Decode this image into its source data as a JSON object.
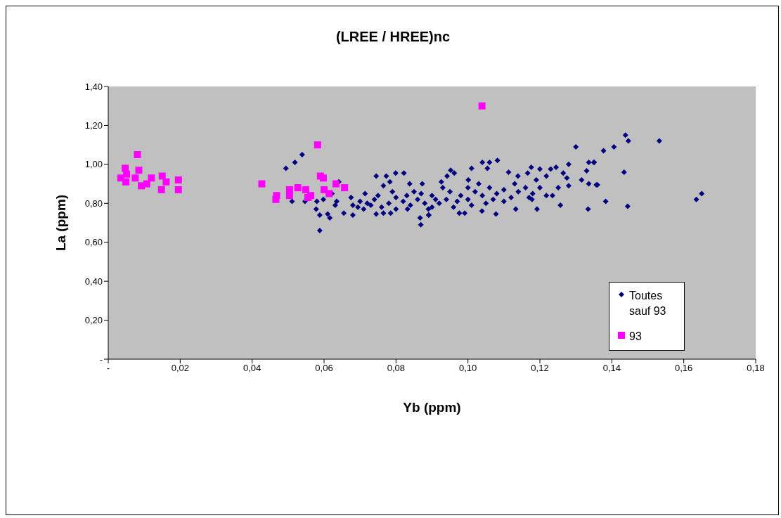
{
  "chart_data": {
    "type": "scatter",
    "title": "(LREE / HREE)nc",
    "xlabel": "Yb (ppm)",
    "ylabel": "La (ppm)",
    "xlim": [
      0,
      0.18
    ],
    "xticks": [
      {
        "value": 0,
        "label": "-"
      },
      {
        "value": 0.02,
        "label": "0,02"
      },
      {
        "value": 0.04,
        "label": "0,04"
      },
      {
        "value": 0.06,
        "label": "0,06"
      },
      {
        "value": 0.08,
        "label": "0,08"
      },
      {
        "value": 0.1,
        "label": "0,10"
      },
      {
        "value": 0.12,
        "label": "0,12"
      },
      {
        "value": 0.14,
        "label": "0,14"
      },
      {
        "value": 0.16,
        "label": "0,16"
      },
      {
        "value": 0.18,
        "label": "0,18"
      }
    ],
    "ylim": [
      0,
      1.4
    ],
    "yticks": [
      {
        "value": 0,
        "label": "-"
      },
      {
        "value": 0.2,
        "label": "0,20"
      },
      {
        "value": 0.4,
        "label": "0,40"
      },
      {
        "value": 0.6,
        "label": "0,60"
      },
      {
        "value": 0.8,
        "label": "0,80"
      },
      {
        "value": 1.0,
        "label": "1,00"
      },
      {
        "value": 1.2,
        "label": "1,20"
      },
      {
        "value": 1.4,
        "label": "1,40"
      }
    ],
    "grid": false,
    "legend": "right",
    "series": [
      {
        "name": "Toutes sauf 93",
        "color": "#000080",
        "marker": "diamond",
        "x": [
          0.0494,
          0.0519,
          0.0539,
          0.0511,
          0.0547,
          0.058,
          0.0578,
          0.0588,
          0.0588,
          0.061,
          0.0616,
          0.0598,
          0.0635,
          0.0631,
          0.0641,
          0.0622,
          0.0745,
          0.0773,
          0.0799,
          0.0822,
          0.0765,
          0.0783,
          0.0873,
          0.0867,
          0.0869,
          0.0891,
          0.0745,
          0.0765,
          0.0785,
          0.0675,
          0.0714,
          0.0694,
          0.068,
          0.0655,
          0.0832,
          0.0838,
          0.13,
          0.104,
          0.106,
          0.1082,
          0.0952,
          0.101,
          0.1054,
          0.1176,
          0.12,
          0.123,
          0.1245,
          0.128,
          0.1336,
          0.135,
          0.133,
          0.1316,
          0.1336,
          0.136,
          0.1257,
          0.1334,
          0.1133,
          0.1078,
          0.1039,
          0.0891,
          0.0976,
          0.0991,
          0.1192,
          0.1178,
          0.1218,
          0.1235,
          0.1251,
          0.128,
          0.1275,
          0.1265,
          0.1218,
          0.1139,
          0.1166,
          0.1113,
          0.1001,
          0.0962,
          0.0942,
          0.0926,
          0.068,
          0.07,
          0.072,
          0.074,
          0.076,
          0.078,
          0.08,
          0.082,
          0.084,
          0.086,
          0.088,
          0.09,
          0.092,
          0.094,
          0.096,
          0.098,
          0.1,
          0.102,
          0.104,
          0.106,
          0.108,
          0.11,
          0.112,
          0.114,
          0.116,
          0.118,
          0.12,
          0.085,
          0.09,
          0.095,
          0.1,
          0.105,
          0.11,
          0.08,
          0.075,
          0.071,
          0.087,
          0.093,
          0.097,
          0.103,
          0.107,
          0.113,
          0.117,
          0.119,
          0.101,
          0.089,
          0.083,
          0.079,
          0.073,
          0.091,
          0.1438,
          0.1446,
          0.1532,
          0.1406,
          0.1377,
          0.1351,
          0.1434,
          0.1357,
          0.1383,
          0.1444,
          0.1635,
          0.165
        ],
        "values": [
          0.98,
          1.01,
          1.05,
          0.81,
          0.81,
          0.81,
          0.77,
          0.74,
          0.66,
          0.745,
          0.725,
          0.82,
          0.81,
          0.79,
          0.91,
          0.85,
          0.94,
          0.94,
          0.955,
          0.955,
          0.89,
          0.91,
          0.9,
          0.725,
          0.69,
          0.74,
          0.745,
          0.75,
          0.75,
          0.83,
          0.85,
          0.78,
          0.74,
          0.75,
          0.77,
          0.9,
          1.09,
          1.01,
          1.01,
          1.02,
          0.97,
          0.98,
          0.98,
          0.985,
          0.976,
          0.976,
          0.985,
          1.0,
          1.01,
          1.01,
          0.967,
          0.92,
          0.9,
          0.895,
          0.79,
          0.77,
          0.77,
          0.745,
          0.76,
          0.74,
          0.75,
          0.75,
          0.77,
          0.82,
          0.84,
          0.84,
          0.88,
          0.89,
          0.93,
          0.955,
          0.94,
          0.94,
          0.955,
          0.96,
          0.92,
          0.955,
          0.94,
          0.91,
          0.79,
          0.81,
          0.8,
          0.82,
          0.78,
          0.8,
          0.83,
          0.81,
          0.79,
          0.82,
          0.8,
          0.84,
          0.8,
          0.82,
          0.78,
          0.84,
          0.82,
          0.86,
          0.84,
          0.88,
          0.85,
          0.87,
          0.83,
          0.86,
          0.88,
          0.85,
          0.88,
          0.86,
          0.78,
          0.86,
          0.88,
          0.8,
          0.81,
          0.77,
          0.84,
          0.77,
          0.85,
          0.88,
          0.81,
          0.9,
          0.82,
          0.9,
          0.83,
          0.92,
          0.79,
          0.77,
          0.84,
          0.86,
          0.79,
          0.82,
          1.15,
          1.12,
          1.12,
          1.09,
          1.07,
          1.01,
          0.96,
          0.895,
          0.81,
          0.785,
          0.82,
          0.85
        ]
      },
      {
        "name": "93",
        "color": "#ff00ff",
        "marker": "square",
        "x": [
          0.0035,
          0.0047,
          0.0051,
          0.0049,
          0.0075,
          0.0081,
          0.0085,
          0.0092,
          0.0107,
          0.012,
          0.015,
          0.0161,
          0.0148,
          0.0195,
          0.0195,
          0.0427,
          0.0468,
          0.0466,
          0.0504,
          0.0504,
          0.0527,
          0.0549,
          0.0563,
          0.0555,
          0.0582,
          0.059,
          0.0598,
          0.06,
          0.0614,
          0.0633,
          0.0657,
          0.1039
        ],
        "values": [
          0.93,
          0.98,
          0.95,
          0.91,
          0.93,
          1.05,
          0.97,
          0.89,
          0.9,
          0.93,
          0.94,
          0.91,
          0.87,
          0.92,
          0.87,
          0.9,
          0.84,
          0.82,
          0.87,
          0.84,
          0.88,
          0.87,
          0.84,
          0.83,
          1.1,
          0.94,
          0.93,
          0.87,
          0.85,
          0.9,
          0.88,
          1.3
        ]
      }
    ]
  }
}
